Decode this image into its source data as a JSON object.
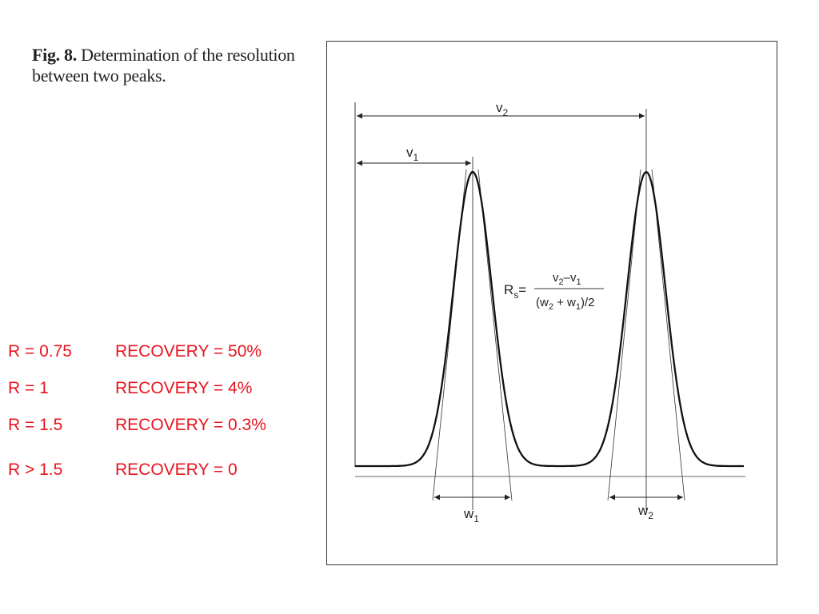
{
  "caption": {
    "label": "Fig. 8.",
    "line1_rest": "Determination of the resolution",
    "line2": "between two peaks."
  },
  "resolution_table": {
    "color": "#e8141e",
    "rows": [
      {
        "r": "R = 0.75",
        "recovery": "RECOVERY = 50%"
      },
      {
        "r": "R = 1",
        "recovery": "RECOVERY = 4%"
      },
      {
        "r": "R = 1.5",
        "recovery": "RECOVERY = 0.3%"
      },
      {
        "r": "R > 1.5",
        "recovery": "RECOVERY = 0"
      }
    ]
  },
  "diagram": {
    "labels": {
      "v1": "v",
      "v1_sub": "1",
      "v2": "v",
      "v2_sub": "2",
      "w1": "w",
      "w1_sub": "1",
      "w2": "w",
      "w2_sub": "2"
    },
    "formula": {
      "lhs": "R",
      "lhs_sub": "s",
      "equals": "=",
      "num_a": "v",
      "num_a_sub": "2",
      "num_dash": "–v",
      "num_b_sub": "1",
      "den_open": "(w",
      "den_w2_sub": "2",
      "den_plus": " + w",
      "den_w1_sub": "1",
      "den_close": ")/2"
    }
  }
}
